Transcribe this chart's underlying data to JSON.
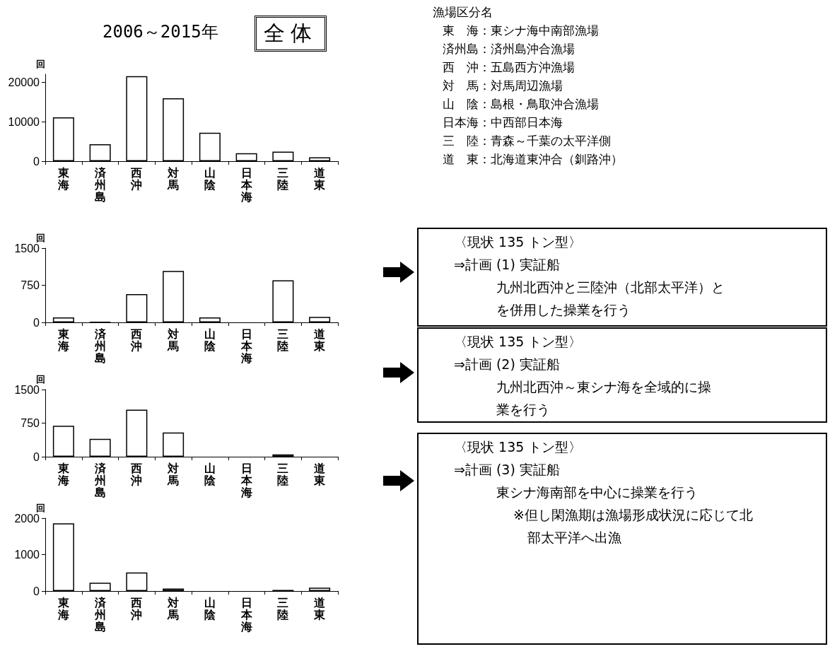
{
  "chart_data": [
    {
      "type": "bar",
      "title": "2006～2015年",
      "ylabel": "回",
      "annotations": [
        "全体"
      ],
      "categories": [
        "東海",
        "済州島",
        "西沖",
        "対馬",
        "山陰",
        "日本海",
        "三陸",
        "道東"
      ],
      "colors": [
        "#ffffff",
        "#ffffff",
        "#ffffff",
        "#ffffff",
        "#ffffff",
        "#ffffff",
        "#ffffff",
        "#ffffff"
      ],
      "values": [
        11100,
        4300,
        21500,
        15900,
        7200,
        2000,
        2400,
        1000
      ],
      "ylim": [
        0,
        22000
      ],
      "yticks": [
        0,
        10000,
        20000
      ],
      "grid": false
    },
    {
      "type": "bar",
      "ylabel": "回",
      "categories": [
        "東海",
        "済州島",
        "西沖",
        "対馬",
        "山陰",
        "日本海",
        "三陸",
        "道東"
      ],
      "colors": [
        "#ffffff",
        "#000000",
        "#ffffff",
        "#ffffff",
        "#ffffff",
        "#000000",
        "#ffffff",
        "#ffffff"
      ],
      "values": [
        100,
        10,
        570,
        1040,
        100,
        0,
        850,
        110
      ],
      "ylim": [
        0,
        1500
      ],
      "yticks": [
        0,
        750,
        1500
      ],
      "grid": false
    },
    {
      "type": "bar",
      "ylabel": "回",
      "categories": [
        "東海",
        "済州島",
        "西沖",
        "対馬",
        "山陰",
        "日本海",
        "三陸",
        "道東"
      ],
      "colors": [
        "#ffffff",
        "#ffffff",
        "#ffffff",
        "#ffffff",
        "#000000",
        "#000000",
        "#808080",
        "#000000"
      ],
      "values": [
        690,
        400,
        1050,
        540,
        0,
        0,
        50,
        0
      ],
      "ylim": [
        0,
        1500
      ],
      "yticks": [
        0,
        750,
        1500
      ],
      "grid": false
    },
    {
      "type": "bar",
      "ylabel": "回",
      "categories": [
        "東海",
        "済州島",
        "西沖",
        "対馬",
        "山陰",
        "日本海",
        "三陸",
        "道東"
      ],
      "colors": [
        "#ffffff",
        "#ffffff",
        "#ffffff",
        "#808080",
        "#000000",
        "#000000",
        "#000000",
        "#ffffff"
      ],
      "values": [
        1860,
        230,
        510,
        70,
        0,
        0,
        30,
        90
      ],
      "ylim": [
        0,
        2000
      ],
      "yticks": [
        0,
        1000,
        2000
      ],
      "grid": false
    },
    {
      "type": "other",
      "title": "漁場区分名",
      "annotations": [
        "東　海：東シナ海中南部漁場",
        "済州島：済州島沖合漁場",
        "西　沖：五島西方沖漁場",
        "対　馬：対馬周辺漁場",
        "山　陰：島根・鳥取沖合漁場",
        "日本海：中西部日本海",
        "三　陸：青森～千葉の太平洋側",
        "道　東：北海道東沖合（釧路沖）"
      ]
    },
    {
      "type": "other",
      "title": "〈現状 135 トン型〉",
      "subtitle": "⇒計画 (1) 実証船",
      "annotations": [
        "九州北西沖と三陸沖（北部太平洋）と",
        "を併用した操業を行う"
      ]
    },
    {
      "type": "other",
      "title": "〈現状 135 トン型〉",
      "subtitle": "⇒計画 (2) 実証船",
      "annotations": [
        "九州北西沖～東シナ海を全域的に操",
        "業を行う"
      ]
    },
    {
      "type": "other",
      "title": "〈現状 135 トン型〉",
      "subtitle": "⇒計画 (3) 実証船",
      "annotations": [
        "東シナ海南部を中心に操業を行う",
        "※但し閑漁期は漁場形成状況に応じて北",
        "部太平洋へ出漁"
      ]
    }
  ]
}
